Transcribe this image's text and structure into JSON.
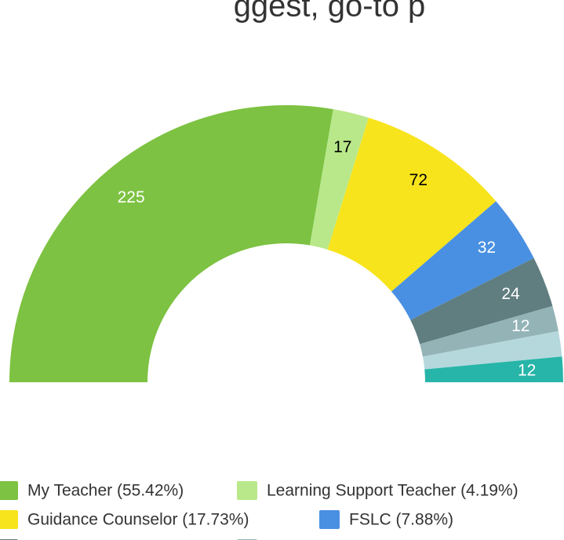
{
  "chart_data": {
    "type": "semi-donut",
    "title": "ggest, go-to p",
    "categories": [
      "My Teacher (55.42%)",
      "Learning Support Teacher (4.19%)",
      "Guidance Counselor (17.73%)",
      "FSLC (7.88%)",
      null,
      null,
      null,
      null
    ],
    "values": [
      225,
      17,
      72,
      32,
      24,
      12,
      12,
      12
    ],
    "value_labels": [
      "225",
      "17",
      "72",
      "32",
      "24",
      "12",
      null,
      "12"
    ],
    "colors": [
      "#7dc242",
      "#b9e88a",
      "#f7e41d",
      "#4a90e2",
      "#607d7f",
      "#93b3b7",
      "#b5d8dd",
      "#26b5a8"
    ],
    "label_colors": [
      "#ffffff",
      "#000000",
      "#000000",
      "#ffffff",
      "#ffffff",
      "#ffffff",
      "#ffffff",
      "#ffffff"
    ]
  }
}
